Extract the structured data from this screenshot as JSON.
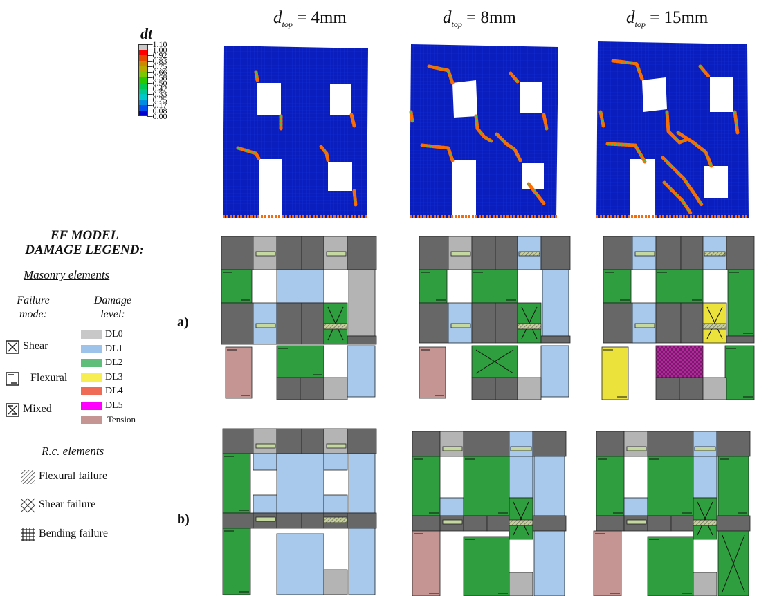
{
  "columns": [
    {
      "var": "d",
      "sub": "top",
      "value": "= 4mm"
    },
    {
      "var": "d",
      "sub": "top",
      "value": "= 8mm"
    },
    {
      "var": "d",
      "sub": "top",
      "value": "= 15mm"
    }
  ],
  "colorbar": {
    "label": "dt",
    "ticks": [
      "1.10",
      "1.00",
      "0.92",
      "0.83",
      "0.75",
      "0.66",
      "0.58",
      "0.50",
      "0.42",
      "0.33",
      "0.25",
      "0.17",
      "0.08",
      "0.00"
    ],
    "colors": [
      "#c8c8c8",
      "#ff0000",
      "#e24a00",
      "#cc8800",
      "#b8a800",
      "#7cc800",
      "#28c800",
      "#00c850",
      "#00c88e",
      "#00c8c8",
      "#008ce0",
      "#0050f0",
      "#0000d0"
    ]
  },
  "legend": {
    "title_line1": "EF MODEL",
    "title_line2": "DAMAGE LEGEND:",
    "masonry_header": "Masonry elements",
    "failure_mode_header": "Failure mode:",
    "damage_level_header": "Damage level:",
    "failure_modes": [
      {
        "label": "Shear",
        "icon": "shear-icon"
      },
      {
        "label": "Flexural",
        "icon": "flexural-icon"
      },
      {
        "label": "Mixed",
        "icon": "mixed-icon"
      }
    ],
    "damage_levels": [
      {
        "label": "DL0",
        "color": "#c8c8c8"
      },
      {
        "label": "DL1",
        "color": "#9ec3ea"
      },
      {
        "label": "DL2",
        "color": "#5fbf7a"
      },
      {
        "label": "DL3",
        "color": "#f7ef52"
      },
      {
        "label": "DL4",
        "color": "#ef6b55"
      },
      {
        "label": "DL5",
        "color": "#ff00ff"
      },
      {
        "label": "Tension",
        "color": "#c49593"
      }
    ],
    "rc_header": "R.c. elements",
    "rc_failures": [
      {
        "label": "Flexural failure",
        "icon": "hatch-icon"
      },
      {
        "label": "Shear failure",
        "icon": "crosshatch-icon"
      },
      {
        "label": "Bending failure",
        "icon": "grid-icon"
      }
    ]
  },
  "rows": [
    {
      "label": "a)"
    },
    {
      "label": "b)"
    }
  ],
  "colors": {
    "undamaged": "#676767",
    "dl0": "#b4b4b4",
    "dl1": "#a8c8ec",
    "dl2": "#2e9e3e",
    "dl3": "#ece23c",
    "dl5": "#b0289c",
    "tension": "#c49593",
    "fem_blue": "#0a1ebe",
    "beam": "#c6d8a2"
  }
}
